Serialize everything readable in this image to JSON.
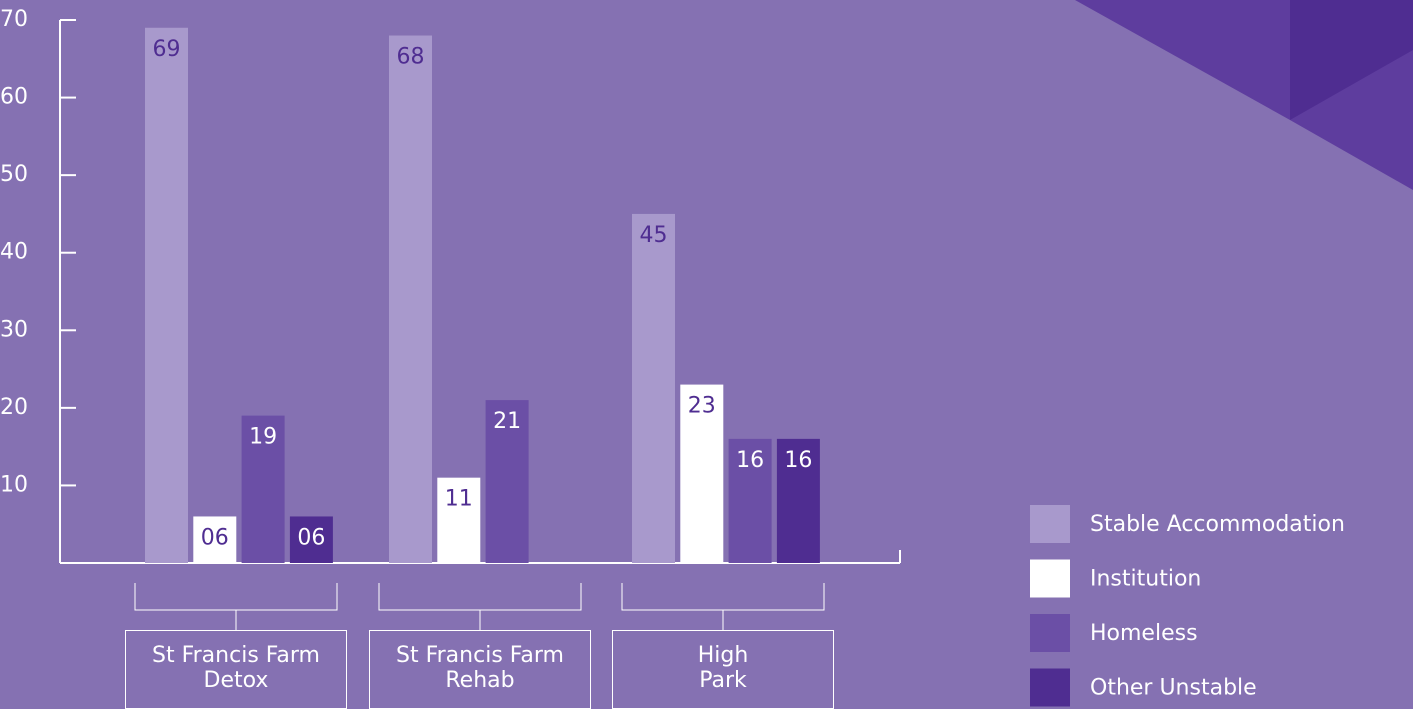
{
  "chart_data": {
    "type": "bar",
    "categories": [
      "St Francis Farm\nDetox",
      "St Francis Farm\nRehab",
      "High\nPark"
    ],
    "series": [
      {
        "name": "Stable Accommodation",
        "color": "#a899cc",
        "label_color": "#4f2d91",
        "values": [
          69,
          68,
          45
        ]
      },
      {
        "name": "Institution",
        "color": "#ffffff",
        "label_color": "#4f2d91",
        "values": [
          6,
          11,
          23
        ],
        "value_labels": [
          "06",
          "11",
          "23"
        ]
      },
      {
        "name": "Homeless",
        "color": "#6b4fa6",
        "label_color": "#ffffff",
        "values": [
          19,
          21,
          16
        ]
      },
      {
        "name": "Other Unstable",
        "color": "#4f2d91",
        "label_color": "#ffffff",
        "values": [
          6,
          null,
          16
        ],
        "value_labels": [
          "06",
          null,
          "16"
        ]
      }
    ],
    "ylim": [
      0,
      70
    ],
    "yticks": [
      10,
      20,
      30,
      40,
      50,
      60,
      70
    ],
    "legend": "lower right"
  }
}
